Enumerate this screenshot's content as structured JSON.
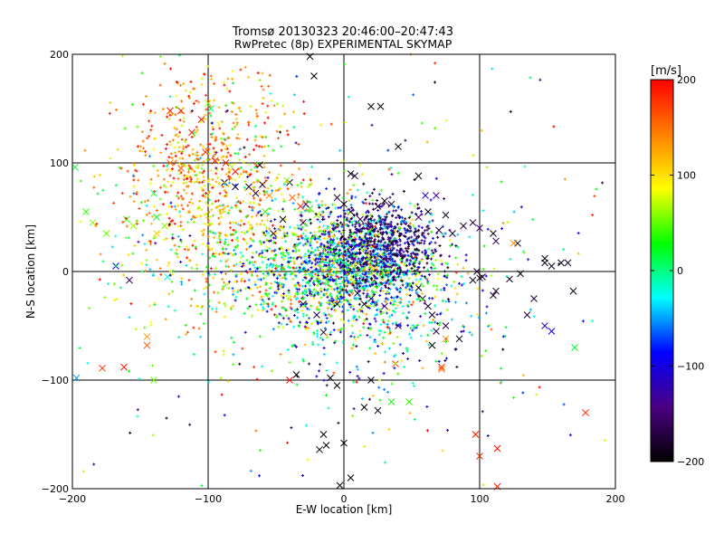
{
  "chart_data": {
    "type": "scatter",
    "title": "Tromsø 20130323 20:46:00–20:47:43",
    "subtitle": "RwPretec (8p) EXPERIMENTAL SKYMAP",
    "xlabel": "E-W location [km]",
    "ylabel": "N-S location [km]",
    "xlim": [
      -200,
      200
    ],
    "ylim": [
      -200,
      200
    ],
    "xticks": [
      -200,
      -100,
      0,
      100,
      200
    ],
    "yticks": [
      -200,
      -100,
      0,
      100,
      200
    ],
    "grid": true,
    "colorbar": {
      "label": "[m/s]",
      "range": [
        -200,
        200
      ],
      "ticks": [
        200,
        100,
        0,
        -100,
        -200
      ],
      "colormap": [
        "#000000",
        "#4b0082",
        "#0000ff",
        "#00ffff",
        "#00ff00",
        "#ffff00",
        "#ff8000",
        "#ff0000"
      ]
    },
    "series": [
      {
        "marker": "x",
        "points": [
          [
            -197,
            -98,
            -50
          ],
          [
            -198,
            96,
            20
          ],
          [
            -190,
            55,
            40
          ],
          [
            -185,
            45,
            60
          ],
          [
            -175,
            35,
            50
          ],
          [
            -160,
            48,
            40
          ],
          [
            -155,
            42,
            60
          ],
          [
            -168,
            5,
            -90
          ],
          [
            -158,
            -8,
            -150
          ],
          [
            -145,
            -68,
            160
          ],
          [
            -145,
            -60,
            130
          ],
          [
            -162,
            -88,
            190
          ],
          [
            -178,
            -89,
            180
          ],
          [
            -140,
            -100,
            50
          ],
          [
            -130,
            -5,
            -20
          ],
          [
            -128,
            148,
            190
          ],
          [
            -120,
            148,
            190
          ],
          [
            -105,
            140,
            190
          ],
          [
            -98,
            150,
            10
          ],
          [
            -100,
            155,
            60
          ],
          [
            -112,
            128,
            190
          ],
          [
            -102,
            110,
            180
          ],
          [
            -128,
            100,
            150
          ],
          [
            -120,
            95,
            160
          ],
          [
            -140,
            72,
            -10
          ],
          [
            -138,
            50,
            20
          ],
          [
            -132,
            42,
            60
          ],
          [
            -138,
            35,
            110
          ],
          [
            -95,
            102,
            190
          ],
          [
            -87,
            100,
            185
          ],
          [
            -80,
            92,
            190
          ],
          [
            -88,
            82,
            -190
          ],
          [
            -80,
            78,
            -190
          ],
          [
            -70,
            78,
            -180
          ],
          [
            -60,
            80,
            -185
          ],
          [
            -65,
            72,
            -180
          ],
          [
            -62,
            98,
            -190
          ],
          [
            -40,
            82,
            -180
          ],
          [
            -42,
            84,
            60
          ],
          [
            -55,
            70,
            140
          ],
          [
            -38,
            68,
            150
          ],
          [
            -32,
            60,
            180
          ],
          [
            -45,
            48,
            -200
          ],
          [
            -52,
            35,
            -190
          ],
          [
            -58,
            55,
            40
          ],
          [
            -30,
            45,
            -170
          ],
          [
            -25,
            58,
            40
          ],
          [
            -20,
            52,
            60
          ],
          [
            -28,
            62,
            -160
          ],
          [
            -25,
            198,
            -200
          ],
          [
            -22,
            180,
            -200
          ],
          [
            -5,
            68,
            -180
          ],
          [
            0,
            62,
            -190
          ],
          [
            5,
            55,
            -190
          ],
          [
            20,
            152,
            -200
          ],
          [
            27,
            152,
            -200
          ],
          [
            40,
            115,
            -190
          ],
          [
            8,
            88,
            -180
          ],
          [
            5,
            90,
            -190
          ],
          [
            55,
            88,
            -200
          ],
          [
            30,
            65,
            -190
          ],
          [
            35,
            62,
            -180
          ],
          [
            25,
            60,
            -180
          ],
          [
            12,
            48,
            -170
          ],
          [
            18,
            42,
            -190
          ],
          [
            55,
            50,
            -150
          ],
          [
            60,
            70,
            -120
          ],
          [
            68,
            70,
            -130
          ],
          [
            62,
            55,
            -200
          ],
          [
            75,
            52,
            -190
          ],
          [
            70,
            38,
            -180
          ],
          [
            80,
            35,
            -190
          ],
          [
            88,
            42,
            -180
          ],
          [
            95,
            45,
            -160
          ],
          [
            100,
            40,
            -150
          ],
          [
            110,
            35,
            -190
          ],
          [
            112,
            28,
            -150
          ],
          [
            128,
            26,
            -190
          ],
          [
            130,
            -2,
            -190
          ],
          [
            122,
            -7,
            -180
          ],
          [
            140,
            -25,
            -180
          ],
          [
            148,
            -50,
            -120
          ],
          [
            153,
            -55,
            -100
          ],
          [
            135,
            -40,
            -170
          ],
          [
            148,
            12,
            -190
          ],
          [
            148,
            8,
            -190
          ],
          [
            153,
            5,
            -190
          ],
          [
            160,
            8,
            -190
          ],
          [
            165,
            8,
            -190
          ],
          [
            169,
            -18,
            -190
          ],
          [
            98,
            0,
            -190
          ],
          [
            100,
            -6,
            -190
          ],
          [
            95,
            -8,
            -190
          ],
          [
            102,
            -5,
            -190
          ],
          [
            112,
            -18,
            -180
          ],
          [
            110,
            -22,
            -180
          ],
          [
            170,
            -70,
            20
          ],
          [
            125,
            26,
            140
          ],
          [
            -30,
            -30,
            -190
          ],
          [
            -20,
            -40,
            -170
          ],
          [
            -15,
            -56,
            -180
          ],
          [
            -5,
            -30,
            -200
          ],
          [
            10,
            -20,
            -190
          ],
          [
            15,
            -30,
            -190
          ],
          [
            20,
            -25,
            -180
          ],
          [
            30,
            -32,
            -150
          ],
          [
            40,
            -50,
            -160
          ],
          [
            55,
            -15,
            -190
          ],
          [
            58,
            -25,
            -190
          ],
          [
            62,
            -32,
            -180
          ],
          [
            65,
            -40,
            -180
          ],
          [
            75,
            -50,
            -170
          ],
          [
            68,
            -55,
            -170
          ],
          [
            85,
            -62,
            -190
          ],
          [
            75,
            -62,
            130
          ],
          [
            -40,
            -100,
            190
          ],
          [
            -35,
            -95,
            -200
          ],
          [
            -10,
            -98,
            -190
          ],
          [
            -5,
            -105,
            -200
          ],
          [
            20,
            -100,
            -190
          ],
          [
            15,
            -125,
            -200
          ],
          [
            25,
            -128,
            -190
          ],
          [
            -15,
            -150,
            -200
          ],
          [
            -13,
            -160,
            -200
          ],
          [
            -3,
            -197,
            -200
          ],
          [
            5,
            -190,
            -200
          ],
          [
            65,
            -68,
            -200
          ],
          [
            38,
            -85,
            170
          ],
          [
            48,
            -120,
            40
          ],
          [
            72,
            -90,
            150
          ],
          [
            72,
            -88,
            180
          ],
          [
            35,
            -120,
            30
          ],
          [
            97,
            -150,
            190
          ],
          [
            100,
            -170,
            180
          ],
          [
            113,
            -163,
            190
          ],
          [
            113,
            -198,
            190
          ],
          [
            178,
            -130,
            180
          ],
          [
            0,
            -158,
            -200
          ],
          [
            -18,
            -164,
            -200
          ]
        ]
      },
      {
        "marker": "+",
        "density_regions": [
          {
            "cx": 0,
            "cy": 5,
            "sx": 32,
            "sy": 24,
            "n": 1300,
            "vmean": -40,
            "vspread": 150
          },
          {
            "cx": 28,
            "cy": 25,
            "sx": 20,
            "sy": 18,
            "n": 650,
            "vmean": -150,
            "vspread": 70
          },
          {
            "cx": -100,
            "cy": 95,
            "sx": 30,
            "sy": 45,
            "n": 650,
            "vmean": 130,
            "vspread": 90
          },
          {
            "cx": -60,
            "cy": 10,
            "sx": 50,
            "sy": 40,
            "n": 500,
            "vmean": 60,
            "vspread": 110
          },
          {
            "cx": 20,
            "cy": -30,
            "sx": 40,
            "sy": 35,
            "n": 400,
            "vmean": -20,
            "vspread": 140
          },
          {
            "cx": 0,
            "cy": 0,
            "sx": 110,
            "sy": 100,
            "n": 350,
            "vmean": 0,
            "vspread": 180
          }
        ]
      }
    ]
  }
}
